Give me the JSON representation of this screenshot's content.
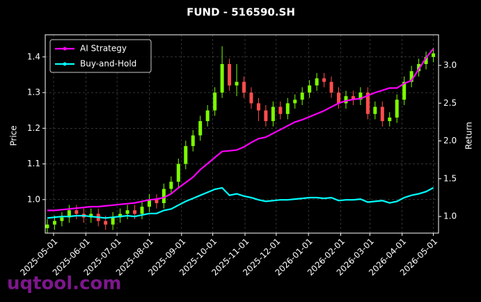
{
  "chart_data": {
    "type": "candlestick",
    "title": "FUND - 516590.SH",
    "ylabel": "Price",
    "y2label": "Return",
    "watermark": "uqtool.com",
    "grid": true,
    "legend": "upper left",
    "up_color": "#7cfc00",
    "down_color": "#ff4d4d",
    "xlim": [
      "2025-04-23",
      "2026-05-06"
    ],
    "xticks": [
      "2025-05-01",
      "2025-06-01",
      "2025-07-01",
      "2025-08-01",
      "2025-09-01",
      "2025-10-01",
      "2025-11-01",
      "2025-12-01",
      "2026-01-01",
      "2026-02-01",
      "2026-03-01",
      "2026-04-01",
      "2026-05-01"
    ],
    "ylim": [
      0.906,
      1.462
    ],
    "yticks": [
      {
        "value": 1,
        "label": "1.0"
      },
      1.1,
      1.2,
      1.3,
      1.4
    ],
    "y2lim": [
      0.78,
      3.405
    ],
    "y2ticks": [
      {
        "value": 1,
        "label": "1.0"
      },
      1.5,
      {
        "value": 2,
        "label": "2.0"
      },
      2.5,
      {
        "value": 3,
        "label": "3.0"
      }
    ],
    "x": [
      "2025-04-25",
      "2025-05-02",
      "2025-05-09",
      "2025-05-16",
      "2025-05-23",
      "2025-05-30",
      "2025-06-06",
      "2025-06-13",
      "2025-06-20",
      "2025-06-27",
      "2025-07-04",
      "2025-07-11",
      "2025-07-18",
      "2025-07-25",
      "2025-08-01",
      "2025-08-08",
      "2025-08-15",
      "2025-08-22",
      "2025-08-29",
      "2025-09-05",
      "2025-09-12",
      "2025-09-19",
      "2025-09-26",
      "2025-10-03",
      "2025-10-10",
      "2025-10-17",
      "2025-10-24",
      "2025-10-31",
      "2025-11-07",
      "2025-11-14",
      "2025-11-21",
      "2025-11-28",
      "2025-12-05",
      "2025-12-12",
      "2025-12-19",
      "2025-12-26",
      "2026-01-02",
      "2026-01-09",
      "2026-01-16",
      "2026-01-23",
      "2026-01-30",
      "2026-02-06",
      "2026-02-13",
      "2026-02-20",
      "2026-02-27",
      "2026-03-06",
      "2026-03-13",
      "2026-03-20",
      "2026-03-27",
      "2026-04-03",
      "2026-04-10",
      "2026-04-17",
      "2026-04-24",
      "2026-05-01"
    ],
    "open": [
      0.92,
      0.93,
      0.94,
      0.95,
      0.97,
      0.96,
      0.95,
      0.96,
      0.94,
      0.93,
      0.95,
      0.96,
      0.97,
      0.96,
      0.98,
      1.0,
      0.99,
      1.03,
      1.05,
      1.1,
      1.15,
      1.18,
      1.22,
      1.25,
      1.3,
      1.38,
      1.32,
      1.33,
      1.3,
      1.27,
      1.25,
      1.22,
      1.26,
      1.24,
      1.27,
      1.28,
      1.3,
      1.32,
      1.34,
      1.33,
      1.3,
      1.27,
      1.29,
      1.28,
      1.3,
      1.24,
      1.26,
      1.22,
      1.23,
      1.28,
      1.33,
      1.36,
      1.38,
      1.4
    ],
    "high": [
      0.945,
      0.955,
      0.965,
      0.985,
      0.985,
      0.975,
      0.975,
      0.975,
      0.955,
      0.965,
      0.975,
      0.985,
      0.985,
      0.995,
      1.015,
      1.015,
      1.045,
      1.065,
      1.115,
      1.165,
      1.195,
      1.235,
      1.265,
      1.315,
      1.43,
      1.395,
      1.38,
      1.345,
      1.315,
      1.285,
      1.265,
      1.275,
      1.275,
      1.285,
      1.295,
      1.315,
      1.335,
      1.355,
      1.355,
      1.345,
      1.315,
      1.305,
      1.305,
      1.315,
      1.315,
      1.275,
      1.275,
      1.245,
      1.295,
      1.345,
      1.375,
      1.395,
      1.415,
      1.425
    ],
    "low": [
      0.905,
      0.915,
      0.925,
      0.935,
      0.945,
      0.935,
      0.935,
      0.925,
      0.915,
      0.915,
      0.935,
      0.945,
      0.945,
      0.945,
      0.965,
      0.975,
      0.975,
      1.015,
      1.035,
      1.085,
      1.135,
      1.165,
      1.205,
      1.235,
      1.285,
      1.305,
      1.29,
      1.285,
      1.255,
      1.22,
      1.205,
      1.205,
      1.225,
      1.225,
      1.255,
      1.265,
      1.285,
      1.305,
      1.315,
      1.285,
      1.255,
      1.255,
      1.265,
      1.265,
      1.225,
      1.225,
      1.205,
      1.205,
      1.215,
      1.265,
      1.315,
      1.345,
      1.365,
      1.385
    ],
    "close": [
      0.93,
      0.94,
      0.95,
      0.97,
      0.96,
      0.95,
      0.96,
      0.94,
      0.93,
      0.95,
      0.96,
      0.97,
      0.96,
      0.98,
      1.0,
      0.99,
      1.03,
      1.05,
      1.1,
      1.15,
      1.18,
      1.22,
      1.25,
      1.3,
      1.38,
      1.32,
      1.33,
      1.3,
      1.27,
      1.25,
      1.22,
      1.26,
      1.24,
      1.27,
      1.28,
      1.3,
      1.32,
      1.34,
      1.33,
      1.3,
      1.27,
      1.29,
      1.28,
      1.3,
      1.24,
      1.26,
      1.22,
      1.23,
      1.28,
      1.33,
      1.36,
      1.38,
      1.4,
      1.41
    ],
    "series": [
      {
        "name": "AI Strategy",
        "color": "#ff00ff",
        "axis": "y2",
        "values": [
          1.08,
          1.08,
          1.09,
          1.1,
          1.11,
          1.12,
          1.13,
          1.13,
          1.14,
          1.15,
          1.16,
          1.17,
          1.18,
          1.2,
          1.22,
          1.23,
          1.25,
          1.3,
          1.38,
          1.45,
          1.52,
          1.62,
          1.7,
          1.78,
          1.86,
          1.87,
          1.88,
          1.92,
          1.98,
          2.03,
          2.05,
          2.1,
          2.15,
          2.2,
          2.25,
          2.28,
          2.32,
          2.36,
          2.4,
          2.45,
          2.5,
          2.53,
          2.55,
          2.56,
          2.6,
          2.64,
          2.67,
          2.7,
          2.7,
          2.76,
          2.8,
          2.95,
          3.1,
          3.22
        ]
      },
      {
        "name": "Buy-and-Hold",
        "color": "#00ffff",
        "axis": "y2",
        "values": [
          0.98,
          0.99,
          1.0,
          1.0,
          1.01,
          1.01,
          1.0,
          0.99,
          0.98,
          0.99,
          1.0,
          1.01,
          1.0,
          1.02,
          1.04,
          1.04,
          1.08,
          1.1,
          1.15,
          1.2,
          1.24,
          1.28,
          1.32,
          1.36,
          1.38,
          1.28,
          1.3,
          1.27,
          1.25,
          1.22,
          1.2,
          1.21,
          1.22,
          1.22,
          1.23,
          1.24,
          1.25,
          1.25,
          1.24,
          1.25,
          1.21,
          1.22,
          1.22,
          1.23,
          1.19,
          1.2,
          1.21,
          1.18,
          1.2,
          1.25,
          1.28,
          1.3,
          1.33,
          1.38
        ]
      }
    ]
  }
}
